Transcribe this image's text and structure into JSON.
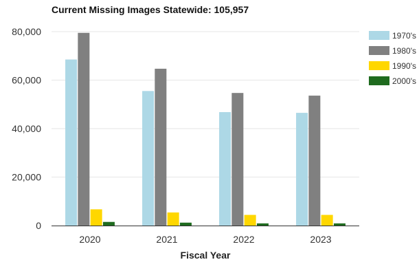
{
  "chart_data": {
    "type": "bar",
    "title": "Current Missing Images Statewide: 105,957",
    "xlabel": "Fiscal Year",
    "ylabel": "",
    "categories": [
      "2020",
      "2021",
      "2022",
      "2023"
    ],
    "series": [
      {
        "name": "1970's",
        "color": "#add8e6",
        "values": [
          68500,
          55500,
          46800,
          46500
        ]
      },
      {
        "name": "1980's",
        "color": "#808080",
        "values": [
          79500,
          64700,
          54700,
          53600
        ]
      },
      {
        "name": "1990's",
        "color": "#ffd700",
        "values": [
          6700,
          5400,
          4400,
          4400
        ]
      },
      {
        "name": "2000's",
        "color": "#1f6b1f",
        "values": [
          1500,
          1200,
          900,
          900
        ]
      }
    ],
    "ylim": [
      0,
      80000
    ],
    "yticks": [
      0,
      20000,
      40000,
      60000,
      80000
    ],
    "ytick_labels": [
      "0",
      "20,000",
      "40,000",
      "60,000",
      "80,000"
    ],
    "grid": true,
    "legend_position": "right"
  }
}
